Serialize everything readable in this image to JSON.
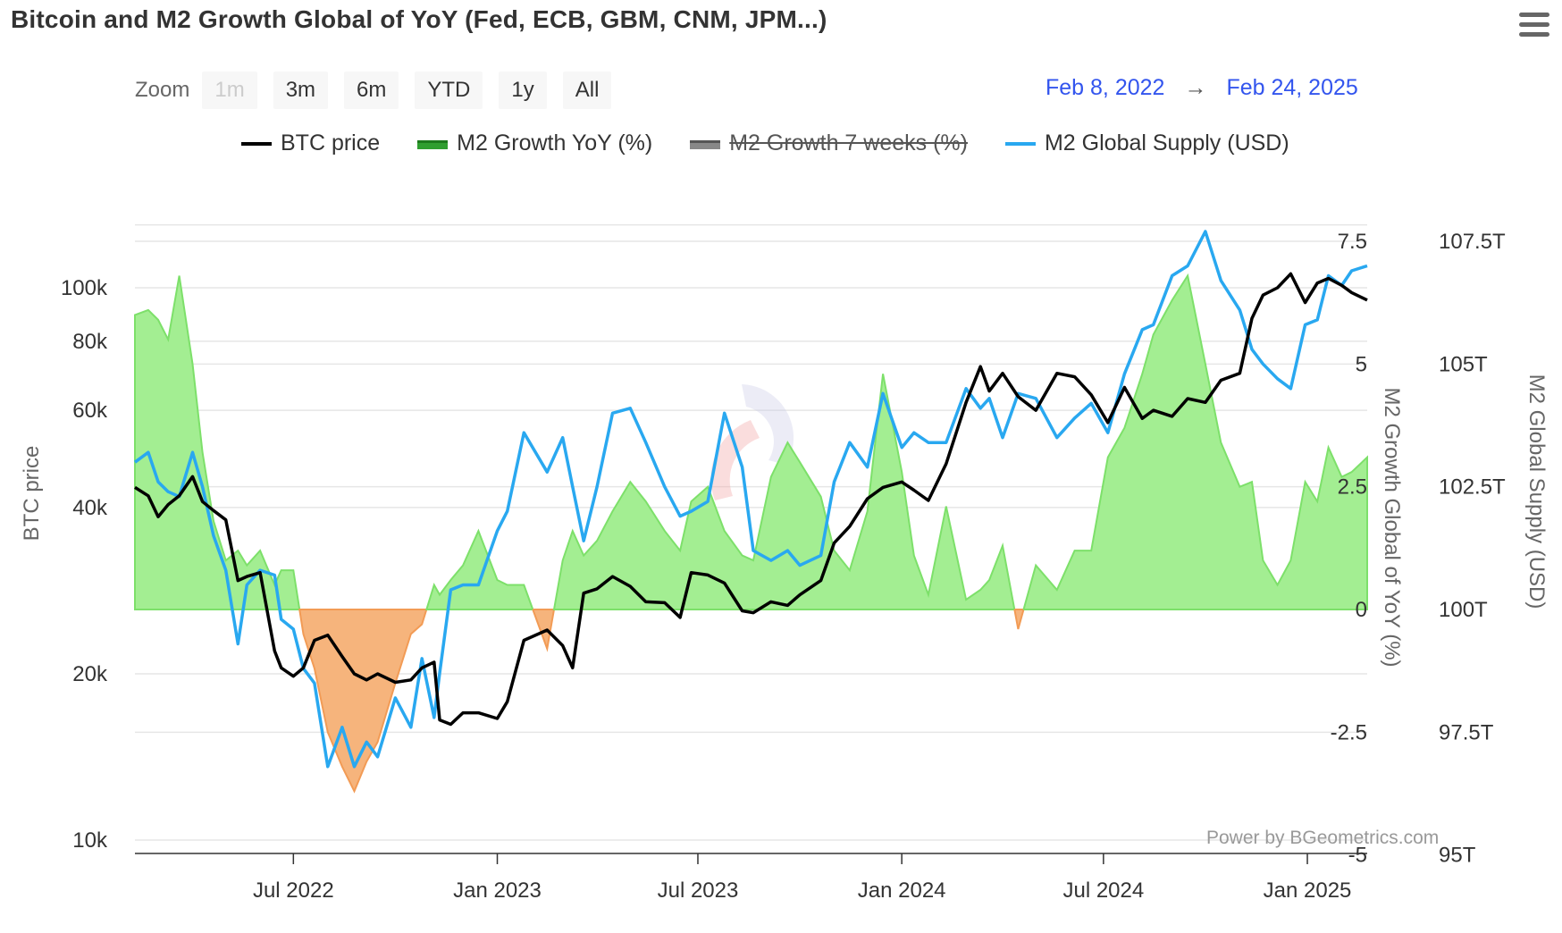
{
  "title": "Bitcoin and M2 Growth Global of YoY (Fed, ECB, GBM, CNM, JPM...)",
  "zoom": {
    "label": "Zoom",
    "buttons": [
      "1m",
      "3m",
      "6m",
      "YTD",
      "1y",
      "All"
    ],
    "disabled": "1m"
  },
  "range": {
    "from": "Feb 8, 2022",
    "arrow": "→",
    "to": "Feb 24, 2025"
  },
  "legend": {
    "btc": "BTC price",
    "m2yoy": "M2 Growth YoY (%)",
    "m2w7": "M2 Growth 7 weeks (%)",
    "m2supply": "M2 Global Supply (USD)"
  },
  "credit": "Power by BGeometrics.com",
  "watermark": "BGeometrics",
  "colors": {
    "btc": "#000000",
    "m2_pos": "#a3ee92",
    "m2_pos_line": "#7de06a",
    "m2_neg": "#f6b47c",
    "m2_neg_line": "#f29b55",
    "supply": "#29a8f0",
    "grid": "#e6e6e6"
  },
  "chart_data": {
    "type": "line",
    "title": "Bitcoin and M2 Growth Global of YoY (Fed, ECB, GBM, CNM, JPM...)",
    "x_range": [
      "2022-02-08",
      "2025-02-24"
    ],
    "x_ticks": [
      "Jul 2022",
      "Jan 2023",
      "Jul 2023",
      "Jan 2024",
      "Jul 2024",
      "Jan 2025"
    ],
    "y_left": {
      "label": "BTC price",
      "scale": "log",
      "ticks": [
        "10k",
        "20k",
        "40k",
        "60k",
        "80k",
        "100k"
      ],
      "range": [
        10000,
        130000
      ]
    },
    "y_right1": {
      "label": "M2 Growth Global of YoY (%)",
      "ticks": [
        "-5",
        "-2.5",
        "0",
        "2.5",
        "5",
        "7.5"
      ],
      "range": [
        -5,
        7.5
      ]
    },
    "y_right2": {
      "label": "M2 Global Supply (USD)",
      "ticks": [
        "95T",
        "97.5T",
        "100T",
        "102.5T",
        "105T",
        "107.5T"
      ],
      "range": [
        95,
        107.5
      ]
    },
    "series": [
      {
        "name": "BTC price",
        "axis": "left",
        "dates": [
          "2022-02-08",
          "2022-02-20",
          "2022-03-01",
          "2022-03-10",
          "2022-03-20",
          "2022-04-01",
          "2022-04-10",
          "2022-04-20",
          "2022-05-01",
          "2022-05-12",
          "2022-05-20",
          "2022-06-01",
          "2022-06-14",
          "2022-06-20",
          "2022-07-01",
          "2022-07-10",
          "2022-07-20",
          "2022-08-01",
          "2022-08-14",
          "2022-08-25",
          "2022-09-05",
          "2022-09-15",
          "2022-10-01",
          "2022-10-15",
          "2022-10-25",
          "2022-11-05",
          "2022-11-10",
          "2022-11-20",
          "2022-12-01",
          "2022-12-15",
          "2023-01-01",
          "2023-01-10",
          "2023-01-25",
          "2023-02-15",
          "2023-03-01",
          "2023-03-10",
          "2023-03-20",
          "2023-04-01",
          "2023-04-15",
          "2023-05-01",
          "2023-05-15",
          "2023-06-01",
          "2023-06-15",
          "2023-06-25",
          "2023-07-10",
          "2023-07-25",
          "2023-08-10",
          "2023-08-20",
          "2023-09-05",
          "2023-09-20",
          "2023-10-01",
          "2023-10-20",
          "2023-11-01",
          "2023-11-15",
          "2023-12-01",
          "2023-12-15",
          "2024-01-01",
          "2024-01-12",
          "2024-01-25",
          "2024-02-10",
          "2024-02-28",
          "2024-03-12",
          "2024-03-20",
          "2024-04-01",
          "2024-04-15",
          "2024-05-01",
          "2024-05-20",
          "2024-06-05",
          "2024-06-20",
          "2024-07-05",
          "2024-07-20",
          "2024-08-05",
          "2024-08-15",
          "2024-09-01",
          "2024-09-15",
          "2024-10-01",
          "2024-10-15",
          "2024-11-01",
          "2024-11-12",
          "2024-11-22",
          "2024-12-05",
          "2024-12-17",
          "2024-12-30",
          "2025-01-10",
          "2025-01-20",
          "2025-02-01",
          "2025-02-10",
          "2025-02-24"
        ],
        "values": [
          43500,
          42000,
          38500,
          40500,
          42000,
          45500,
          41000,
          39500,
          38000,
          29500,
          30000,
          30500,
          22000,
          20500,
          19800,
          20500,
          23000,
          23500,
          21500,
          20000,
          19500,
          20000,
          19300,
          19500,
          20500,
          21000,
          16500,
          16200,
          17000,
          17000,
          16600,
          17800,
          23000,
          24000,
          22500,
          20500,
          28000,
          28500,
          30000,
          28800,
          27000,
          26900,
          25300,
          30500,
          30200,
          29200,
          26000,
          25800,
          27000,
          26600,
          27800,
          29500,
          34500,
          37000,
          41500,
          43500,
          44500,
          43000,
          41200,
          48000,
          62000,
          72000,
          65000,
          70000,
          63500,
          60000,
          70000,
          69000,
          64000,
          57000,
          66000,
          58000,
          60000,
          58500,
          63000,
          62000,
          68000,
          70000,
          88000,
          97000,
          100000,
          106000,
          94000,
          102000,
          104000,
          101000,
          98000,
          95000
        ]
      },
      {
        "name": "M2 Growth YoY (%)",
        "axis": "right1",
        "type": "area",
        "dates": [
          "2022-02-08",
          "2022-02-20",
          "2022-03-01",
          "2022-03-10",
          "2022-03-20",
          "2022-04-01",
          "2022-04-10",
          "2022-04-20",
          "2022-05-01",
          "2022-05-12",
          "2022-05-20",
          "2022-06-01",
          "2022-06-14",
          "2022-06-20",
          "2022-07-01",
          "2022-07-10",
          "2022-07-20",
          "2022-08-01",
          "2022-08-14",
          "2022-08-25",
          "2022-09-05",
          "2022-09-15",
          "2022-10-01",
          "2022-10-15",
          "2022-10-25",
          "2022-11-05",
          "2022-11-10",
          "2022-11-20",
          "2022-12-01",
          "2022-12-15",
          "2023-01-01",
          "2023-01-10",
          "2023-01-25",
          "2023-02-15",
          "2023-03-01",
          "2023-03-10",
          "2023-03-20",
          "2023-04-01",
          "2023-04-15",
          "2023-05-01",
          "2023-05-15",
          "2023-06-01",
          "2023-06-15",
          "2023-06-25",
          "2023-07-10",
          "2023-07-25",
          "2023-08-10",
          "2023-08-20",
          "2023-09-05",
          "2023-09-20",
          "2023-10-01",
          "2023-10-20",
          "2023-11-01",
          "2023-11-15",
          "2023-12-01",
          "2023-12-15",
          "2024-01-01",
          "2024-01-12",
          "2024-01-25",
          "2024-02-10",
          "2024-02-28",
          "2024-03-12",
          "2024-03-20",
          "2024-04-01",
          "2024-04-15",
          "2024-05-01",
          "2024-05-20",
          "2024-06-05",
          "2024-06-20",
          "2024-07-05",
          "2024-07-20",
          "2024-08-05",
          "2024-08-15",
          "2024-09-01",
          "2024-09-15",
          "2024-10-01",
          "2024-10-15",
          "2024-11-01",
          "2024-11-12",
          "2024-11-22",
          "2024-12-05",
          "2024-12-17",
          "2024-12-30",
          "2025-01-10",
          "2025-01-20",
          "2025-02-01",
          "2025-02-10",
          "2025-02-24"
        ],
        "values": [
          6.0,
          6.1,
          5.9,
          5.5,
          6.8,
          5.0,
          3.2,
          1.8,
          1.0,
          1.2,
          0.9,
          1.2,
          0.5,
          0.8,
          0.8,
          -0.5,
          -1.2,
          -2.5,
          -3.2,
          -3.7,
          -3.1,
          -2.7,
          -1.5,
          -0.5,
          -0.3,
          0.5,
          0.3,
          0.6,
          0.9,
          1.6,
          0.6,
          0.5,
          0.5,
          -0.8,
          1.0,
          1.6,
          1.1,
          1.4,
          2.0,
          2.6,
          2.2,
          1.6,
          1.2,
          2.2,
          2.5,
          1.6,
          1.1,
          1.0,
          2.7,
          3.4,
          3.0,
          2.3,
          1.2,
          0.8,
          2.0,
          4.8,
          2.8,
          1.1,
          0.3,
          2.1,
          0.2,
          0.4,
          0.6,
          1.3,
          -0.4,
          0.9,
          0.4,
          1.2,
          1.2,
          3.1,
          3.7,
          4.8,
          5.6,
          6.3,
          6.8,
          5.0,
          3.4,
          2.5,
          2.6,
          1.0,
          0.5,
          1.0,
          2.6,
          2.2,
          3.3,
          2.7,
          2.8,
          3.1
        ]
      },
      {
        "name": "M2 Growth 7 weeks (%)",
        "axis": "right1",
        "hidden": true,
        "dates": [],
        "values": []
      },
      {
        "name": "M2 Global Supply (USD)",
        "axis": "right2",
        "dates": [
          "2022-02-08",
          "2022-02-20",
          "2022-03-01",
          "2022-03-10",
          "2022-03-20",
          "2022-04-01",
          "2022-04-10",
          "2022-04-20",
          "2022-05-01",
          "2022-05-12",
          "2022-05-20",
          "2022-06-01",
          "2022-06-14",
          "2022-06-20",
          "2022-07-01",
          "2022-07-10",
          "2022-07-20",
          "2022-08-01",
          "2022-08-14",
          "2022-08-25",
          "2022-09-05",
          "2022-09-15",
          "2022-10-01",
          "2022-10-15",
          "2022-10-25",
          "2022-11-05",
          "2022-11-10",
          "2022-11-20",
          "2022-12-01",
          "2022-12-15",
          "2023-01-01",
          "2023-01-10",
          "2023-01-25",
          "2023-02-15",
          "2023-03-01",
          "2023-03-10",
          "2023-03-20",
          "2023-04-01",
          "2023-04-15",
          "2023-05-01",
          "2023-05-15",
          "2023-06-01",
          "2023-06-15",
          "2023-06-25",
          "2023-07-10",
          "2023-07-25",
          "2023-08-10",
          "2023-08-20",
          "2023-09-05",
          "2023-09-20",
          "2023-10-01",
          "2023-10-20",
          "2023-11-01",
          "2023-11-15",
          "2023-12-01",
          "2023-12-15",
          "2024-01-01",
          "2024-01-12",
          "2024-01-25",
          "2024-02-10",
          "2024-02-28",
          "2024-03-12",
          "2024-03-20",
          "2024-04-01",
          "2024-04-15",
          "2024-05-01",
          "2024-05-20",
          "2024-06-05",
          "2024-06-20",
          "2024-07-05",
          "2024-07-20",
          "2024-08-05",
          "2024-08-15",
          "2024-09-01",
          "2024-09-15",
          "2024-10-01",
          "2024-10-15",
          "2024-11-01",
          "2024-11-12",
          "2024-11-22",
          "2024-12-05",
          "2024-12-17",
          "2024-12-30",
          "2025-01-10",
          "2025-01-20",
          "2025-02-01",
          "2025-02-10",
          "2025-02-24"
        ],
        "values": [
          103.0,
          103.2,
          102.6,
          102.4,
          102.3,
          103.2,
          102.5,
          101.5,
          100.8,
          99.3,
          100.5,
          100.8,
          100.7,
          99.8,
          99.6,
          98.8,
          98.5,
          96.8,
          97.6,
          96.8,
          97.3,
          97.0,
          98.2,
          97.6,
          99.0,
          97.8,
          98.7,
          100.4,
          100.5,
          100.5,
          101.6,
          102.0,
          103.6,
          102.8,
          103.5,
          102.5,
          101.4,
          102.5,
          104.0,
          104.1,
          103.4,
          102.5,
          101.9,
          102.0,
          102.2,
          104.0,
          102.9,
          101.2,
          101.0,
          101.2,
          100.9,
          101.1,
          102.6,
          103.4,
          102.9,
          104.4,
          103.3,
          103.6,
          103.4,
          103.4,
          104.5,
          104.1,
          104.3,
          103.5,
          104.4,
          104.3,
          103.5,
          103.9,
          104.2,
          103.6,
          104.8,
          105.7,
          105.8,
          106.8,
          107.0,
          107.7,
          106.7,
          106.1,
          105.3,
          105.0,
          104.7,
          104.5,
          105.8,
          105.9,
          106.8,
          106.6,
          106.9,
          107.0
        ]
      }
    ]
  }
}
